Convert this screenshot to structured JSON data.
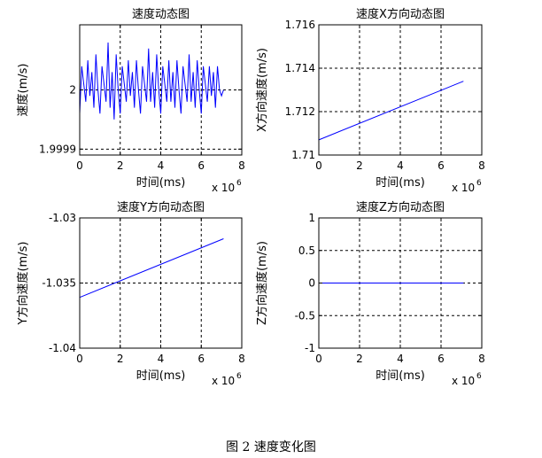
{
  "caption": "图 2  速度变化图",
  "chart_data": [
    {
      "type": "line",
      "title": "速度动态图",
      "xlabel": "时间(ms)",
      "ylabel": "速度(m/s)",
      "x_exponent": "x 10",
      "x_exponent_power": "6",
      "xlim": [
        0,
        8
      ],
      "ylim": [
        1.99989,
        2.00011
      ],
      "xticks": [
        0,
        2,
        4,
        6,
        8
      ],
      "xtick_labels": [
        "0",
        "2",
        "4",
        "6",
        "8"
      ],
      "yticks": [
        1.9999,
        2.0
      ],
      "ytick_labels": [
        "1.9999",
        "2"
      ],
      "grid": true,
      "line_color": "#0000ff",
      "series": [
        {
          "x": [
            0.0,
            0.1,
            0.2,
            0.3,
            0.4,
            0.5,
            0.6,
            0.7,
            0.8,
            0.9,
            1.0,
            1.1,
            1.2,
            1.3,
            1.4,
            1.5,
            1.6,
            1.7,
            1.8,
            1.9,
            2.0,
            2.1,
            2.2,
            2.3,
            2.4,
            2.5,
            2.6,
            2.7,
            2.8,
            2.9,
            3.0,
            3.1,
            3.2,
            3.3,
            3.4,
            3.5,
            3.6,
            3.7,
            3.8,
            3.9,
            4.0,
            4.1,
            4.2,
            4.3,
            4.4,
            4.5,
            4.6,
            4.7,
            4.8,
            4.9,
            5.0,
            5.1,
            5.2,
            5.3,
            5.4,
            5.5,
            5.6,
            5.7,
            5.8,
            5.9,
            6.0,
            6.1,
            6.2,
            6.3,
            6.4,
            6.5,
            6.6,
            6.7,
            6.8,
            6.9,
            7.0,
            7.1
          ],
          "values": [
            1.99996,
            2.00004,
            2.00001,
            1.99998,
            2.00005,
            1.99999,
            2.00003,
            1.99997,
            2.00006,
            2.0,
            1.99996,
            2.00004,
            2.00001,
            1.99998,
            2.00008,
            1.99997,
            2.00003,
            1.99995,
            2.00006,
            2.0,
            1.99996,
            2.00004,
            2.00001,
            1.99998,
            2.00005,
            1.99999,
            2.00003,
            1.99997,
            2.00005,
            2.0,
            1.99996,
            2.00004,
            2.00001,
            1.99998,
            2.00007,
            1.99998,
            2.00003,
            1.99997,
            2.00006,
            2.0,
            1.99996,
            2.00004,
            2.00001,
            1.99998,
            2.00005,
            1.99998,
            2.00003,
            1.99997,
            2.00005,
            2.0,
            1.99996,
            2.00004,
            2.00001,
            1.99998,
            2.00006,
            1.99998,
            2.00003,
            1.99997,
            2.00005,
            2.0,
            1.99996,
            2.00004,
            2.00001,
            1.99998,
            2.00004,
            1.99999,
            2.00003,
            1.99997,
            2.00004,
            2.0,
            1.99999,
            2.0
          ]
        }
      ]
    },
    {
      "type": "line",
      "title": "速度X方向动态图",
      "xlabel": "时间(ms)",
      "ylabel": "X方向速度(m/s)",
      "x_exponent": "x 10",
      "x_exponent_power": "6",
      "xlim": [
        0,
        8
      ],
      "ylim": [
        1.71,
        1.716
      ],
      "xticks": [
        0,
        2,
        4,
        6,
        8
      ],
      "xtick_labels": [
        "0",
        "2",
        "4",
        "6",
        "8"
      ],
      "yticks": [
        1.71,
        1.712,
        1.714,
        1.716
      ],
      "ytick_labels": [
        "1.71",
        "1.712",
        "1.714",
        "1.716"
      ],
      "grid": true,
      "line_color": "#0000ff",
      "series": [
        {
          "x": [
            0,
            7.1
          ],
          "values": [
            1.7107,
            1.7134
          ]
        }
      ]
    },
    {
      "type": "line",
      "title": "速度Y方向动态图",
      "xlabel": "时间(ms)",
      "ylabel": "Y方向速度(m/s)",
      "x_exponent": "x 10",
      "x_exponent_power": "6",
      "xlim": [
        0,
        8
      ],
      "ylim": [
        -1.04,
        -1.03
      ],
      "xticks": [
        0,
        2,
        4,
        6,
        8
      ],
      "xtick_labels": [
        "0",
        "2",
        "4",
        "6",
        "8"
      ],
      "yticks": [
        -1.04,
        -1.035,
        -1.03
      ],
      "ytick_labels": [
        "-1.04",
        "-1.035",
        "-1.03"
      ],
      "grid": true,
      "line_color": "#0000ff",
      "series": [
        {
          "x": [
            0,
            7.1
          ],
          "values": [
            -1.0361,
            -1.0316
          ]
        }
      ]
    },
    {
      "type": "line",
      "title": "速度Z方向动态图",
      "xlabel": "时间(ms)",
      "ylabel": "Z方向速度(m/s)",
      "x_exponent": "x 10",
      "x_exponent_power": "6",
      "xlim": [
        0,
        8
      ],
      "ylim": [
        -1,
        1
      ],
      "xticks": [
        0,
        2,
        4,
        6,
        8
      ],
      "xtick_labels": [
        "0",
        "2",
        "4",
        "6",
        "8"
      ],
      "yticks": [
        -1,
        -0.5,
        0,
        0.5,
        1
      ],
      "ytick_labels": [
        "-1",
        "-0.5",
        "0",
        "0.5",
        "1"
      ],
      "grid": true,
      "line_color": "#0000ff",
      "series": [
        {
          "x": [
            0,
            7.1
          ],
          "values": [
            0,
            0
          ]
        }
      ]
    }
  ]
}
